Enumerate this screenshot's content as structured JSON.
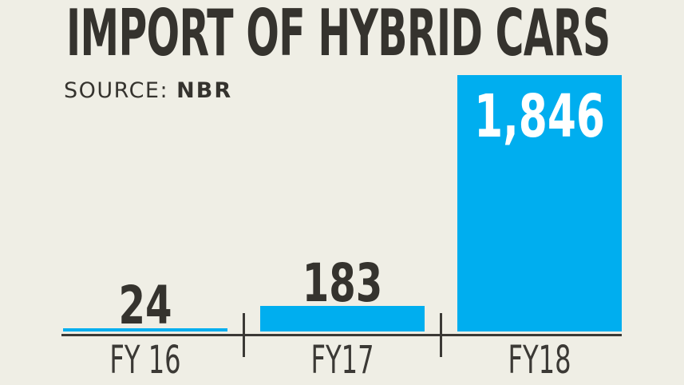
{
  "chart_data": {
    "type": "bar",
    "title": "IMPORT OF HYBRID CARS",
    "source": {
      "label": "SOURCE:",
      "value": "NBR"
    },
    "categories": [
      "FY 16",
      "FY17",
      "FY18"
    ],
    "values": [
      24,
      183,
      1846
    ],
    "value_labels": [
      "24",
      "183",
      "1,846"
    ],
    "ylim": [
      0,
      1846
    ],
    "grid": false,
    "legend": false,
    "bar_color": "#00aeef",
    "background_color": "#efeee5",
    "title_color": "#35332e",
    "label_color": "#3b3935",
    "axis_color": "#3b3935",
    "inside_label_color": "#ffffff"
  }
}
